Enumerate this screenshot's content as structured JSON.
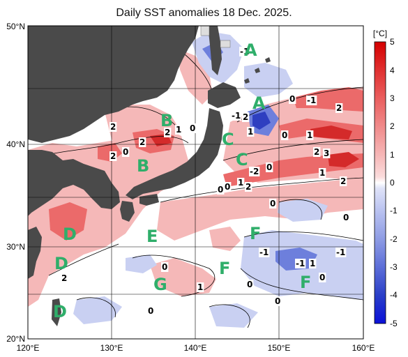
{
  "title": "Daily SST anomalies 18 Dec. 2025.",
  "colorbar": {
    "unit": "[°C]",
    "ticks": [
      "5",
      "4",
      "3",
      "2",
      "1",
      "0",
      "-1",
      "-2",
      "-3",
      "-4",
      "-5"
    ],
    "colors": [
      "#d40000",
      "#e03030",
      "#ea5e5e",
      "#f08a8a",
      "#f6b6b6",
      "#fbdcdc",
      "#ffffff",
      "#dfe3f8",
      "#b9c2f0",
      "#8e9ce4",
      "#5c6ed8",
      "#2a3fc8",
      "#0a10d8"
    ]
  },
  "axes": {
    "x_ticks": [
      "120°E",
      "130°E",
      "140°E",
      "150°E",
      "160°E"
    ],
    "y_ticks": [
      "50°N",
      "40°N",
      "30°N",
      "20°N"
    ]
  },
  "zones": [
    "A",
    "A",
    "B",
    "B",
    "C",
    "C",
    "D",
    "D",
    "D",
    "E",
    "F",
    "F",
    "F",
    "G"
  ],
  "contour_labels": [
    "-1",
    "2",
    "-1",
    "2",
    "2",
    "1",
    "0",
    "2",
    "0",
    "2",
    "1",
    "0",
    "2",
    "-1",
    "1",
    "0",
    "0",
    "2",
    "3",
    "1",
    "2",
    "-2",
    "0",
    "0",
    "1",
    "2",
    "2",
    "0",
    "0",
    "0",
    "-1",
    "-1",
    "-1",
    "1",
    "0",
    "0",
    "0",
    "0",
    "1"
  ],
  "colors": {
    "land": "#4a4a4a",
    "ocean_neutral": "#ffffff",
    "warm": "#f5b0b0",
    "strong_warm": "#e8494a",
    "cool": "#c6cdf2",
    "strong_cool": "#3c52c8",
    "zone_label": "#2fae6a"
  }
}
